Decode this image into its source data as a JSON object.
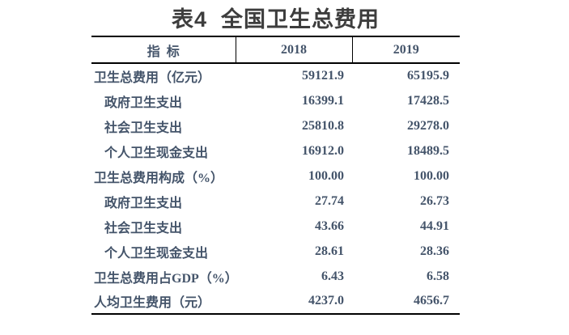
{
  "title": {
    "text": "表4  全国卫生总费用",
    "color": "#3d3d3d"
  },
  "table": {
    "text_color": "#44546a",
    "border_color": "#000000",
    "columns": [
      "指  标",
      "2018",
      "2019"
    ],
    "rows": [
      {
        "label": "卫生总费用（亿元）",
        "indent": 0,
        "v2018": "59121.9",
        "v2019": "65195.9"
      },
      {
        "label": "政府卫生支出",
        "indent": 1,
        "v2018": "16399.1",
        "v2019": "17428.5"
      },
      {
        "label": "社会卫生支出",
        "indent": 1,
        "v2018": "25810.8",
        "v2019": "29278.0"
      },
      {
        "label": "个人卫生现金支出",
        "indent": 1,
        "v2018": "16912.0",
        "v2019": "18489.5"
      },
      {
        "label": "卫生总费用构成（%）",
        "indent": 0,
        "v2018": "100.00",
        "v2019": "100.00"
      },
      {
        "label": "政府卫生支出",
        "indent": 1,
        "v2018": "27.74",
        "v2019": "26.73"
      },
      {
        "label": "社会卫生支出",
        "indent": 1,
        "v2018": "43.66",
        "v2019": "44.91"
      },
      {
        "label": "个人卫生现金支出",
        "indent": 1,
        "v2018": "28.61",
        "v2019": "28.36"
      },
      {
        "label": "卫生总费用占GDP（%）",
        "indent": 0,
        "v2018": "6.43",
        "v2019": "6.58"
      },
      {
        "label": "人均卫生费用（元）",
        "indent": 0,
        "v2018": "4237.0",
        "v2019": "4656.7"
      }
    ]
  },
  "chart_data": {
    "type": "table",
    "title": "表4 全国卫生总费用",
    "categories": [
      "卫生总费用（亿元）",
      "政府卫生支出",
      "社会卫生支出",
      "个人卫生现金支出",
      "卫生总费用构成（%）",
      "政府卫生支出",
      "社会卫生支出",
      "个人卫生现金支出",
      "卫生总费用占GDP（%）",
      "人均卫生费用（元）"
    ],
    "series": [
      {
        "name": "2018",
        "values": [
          59121.9,
          16399.1,
          25810.8,
          16912.0,
          100.0,
          27.74,
          43.66,
          28.61,
          6.43,
          4237.0
        ]
      },
      {
        "name": "2019",
        "values": [
          65195.9,
          17428.5,
          29278.0,
          18489.5,
          100.0,
          26.73,
          44.91,
          28.36,
          6.58,
          4656.7
        ]
      }
    ]
  }
}
